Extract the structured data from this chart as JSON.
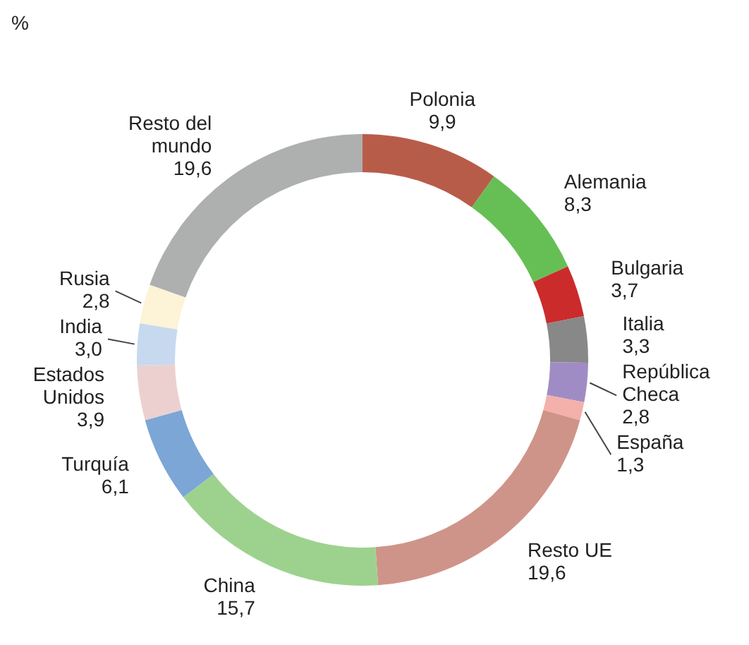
{
  "chart_data": {
    "type": "donut",
    "title": "%",
    "categories": [
      "Polonia",
      "Alemania",
      "Bulgaria",
      "Italia",
      "República\nCheca",
      "España",
      "Resto UE",
      "China",
      "Turquía",
      "Estados\nUnidos",
      "India",
      "Rusia",
      "Resto del\nmundo"
    ],
    "values": [
      9.9,
      8.3,
      3.7,
      3.3,
      2.8,
      1.3,
      19.6,
      15.7,
      6.1,
      3.9,
      3.0,
      2.8,
      19.6
    ],
    "colors": [
      "#b85c4a",
      "#66bf55",
      "#cc2b2b",
      "#888888",
      "#a08cc4",
      "#f4b0aa",
      "#cf9489",
      "#9dd28e",
      "#7ba6d6",
      "#ecd0d0",
      "#c7d9ee",
      "#fdf3d6",
      "#aeb0b0"
    ],
    "value_labels": [
      "9,9",
      "8,3",
      "3,7",
      "3,3",
      "2,8",
      "1,3",
      "19,6",
      "15,7",
      "6,1",
      "3,9",
      "3,0",
      "2,8",
      "19,6"
    ]
  }
}
